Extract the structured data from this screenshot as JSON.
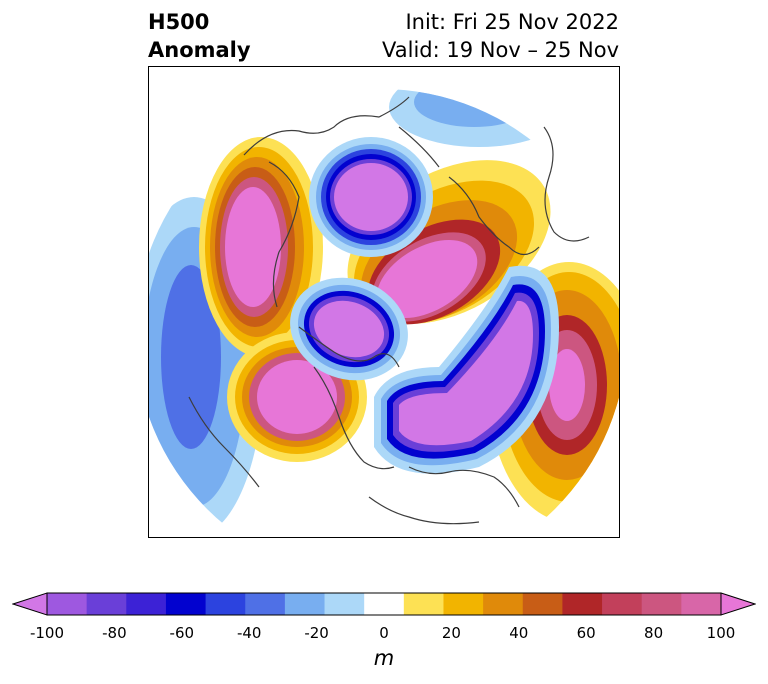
{
  "header": {
    "title_line1": "H500",
    "title_line2": "Anomaly",
    "init_text": "Init: Fri 25 Nov 2022",
    "valid_text": "Valid: 19 Nov – 25 Nov"
  },
  "colorbar": {
    "tick_labels": [
      "-100",
      "-80",
      "-60",
      "-40",
      "-20",
      "0",
      "20",
      "40",
      "60",
      "80",
      "100"
    ],
    "unit": "m",
    "colors": [
      "#d277e6",
      "#9e58e0",
      "#6a3fd8",
      "#3c22d6",
      "#0202cf",
      "#2c43df",
      "#4f70e6",
      "#78aef0",
      "#acd8f8",
      "#ffffff",
      "#fde154",
      "#f2b400",
      "#e08a0a",
      "#c85d16",
      "#b02628",
      "#c2405b",
      "#cc5680",
      "#d866a8",
      "#e776d7"
    ]
  }
}
